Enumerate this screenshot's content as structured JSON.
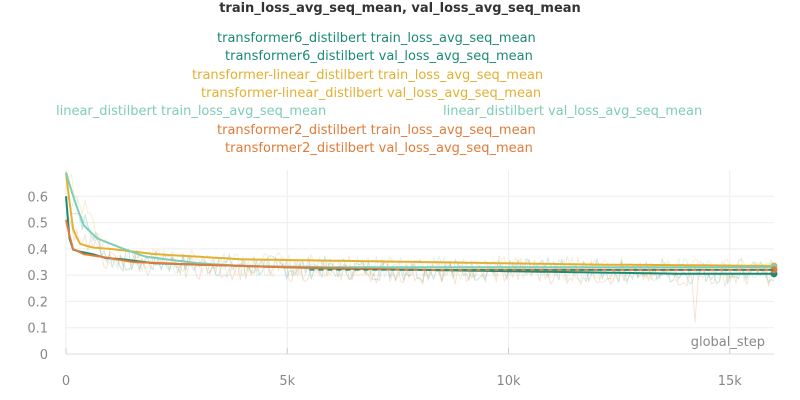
{
  "colors": {
    "teal_dark": "#1b8a74",
    "mustard": "#e3b031",
    "mint": "#7ecdb6",
    "orange": "#e07b39"
  },
  "chart_data": {
    "type": "line",
    "title": "train_loss_avg_seq_mean, val_loss_avg_seq_mean",
    "xlabel": "global_step",
    "ylabel": "",
    "xlim": [
      0,
      16000
    ],
    "ylim": [
      0,
      0.7
    ],
    "grid": true,
    "legend_position": "top",
    "x_ticks": [
      0,
      5000,
      10000,
      15000
    ],
    "x_tick_labels": [
      "0",
      "5k",
      "10k",
      "15k"
    ],
    "y_ticks": [
      0,
      0.1,
      0.2,
      0.3,
      0.4,
      0.5,
      0.6
    ],
    "y_tick_labels": [
      "0",
      "0.1",
      "0.2",
      "0.3",
      "0.4",
      "0.5",
      "0.6"
    ],
    "series": [
      {
        "name": "transformer6_distilbert train_loss_avg_seq_mean",
        "color": "#1b8a74",
        "kind": "noisy",
        "x": [
          0,
          1000,
          3000,
          5000,
          8000,
          11000,
          14000,
          16000
        ],
        "y": [
          0.6,
          0.36,
          0.34,
          0.33,
          0.32,
          0.32,
          0.31,
          0.31
        ]
      },
      {
        "name": "transformer6_distilbert val_loss_avg_seq_mean",
        "color": "#1b8a74",
        "kind": "smooth",
        "x": [
          0,
          100,
          300,
          600,
          900,
          1300,
          2000,
          3000,
          4000,
          5000,
          6000,
          8000,
          10000,
          12000,
          14000,
          16000
        ],
        "y": [
          0.6,
          0.4,
          0.39,
          0.38,
          0.365,
          0.36,
          0.345,
          0.34,
          0.335,
          0.33,
          0.325,
          0.32,
          0.315,
          0.31,
          0.305,
          0.305
        ]
      },
      {
        "name": "transformer-linear_distilbert train_loss_avg_seq_mean",
        "color": "#e3b031",
        "kind": "noisy",
        "x": [
          0,
          1000,
          3000,
          5000,
          8000,
          11000,
          14000,
          16000
        ],
        "y": [
          0.68,
          0.37,
          0.35,
          0.34,
          0.33,
          0.33,
          0.32,
          0.32
        ]
      },
      {
        "name": "transformer-linear_distilbert val_loss_avg_seq_mean",
        "color": "#e3b031",
        "kind": "smooth",
        "x": [
          0,
          150,
          300,
          600,
          1000,
          1500,
          2000,
          3000,
          4000,
          6000,
          8000,
          10000,
          12000,
          14000,
          16000
        ],
        "y": [
          0.69,
          0.48,
          0.42,
          0.405,
          0.4,
          0.39,
          0.38,
          0.37,
          0.36,
          0.355,
          0.35,
          0.345,
          0.34,
          0.338,
          0.335
        ]
      },
      {
        "name": "linear_distilbert train_loss_avg_seq_mean",
        "color": "#7ecdb6",
        "kind": "noisy",
        "x": [
          0,
          1000,
          3000,
          5000,
          8000,
          11000,
          14000,
          16000
        ],
        "y": [
          0.62,
          0.36,
          0.34,
          0.33,
          0.33,
          0.32,
          0.32,
          0.32
        ]
      },
      {
        "name": "linear_distilbert val_loss_avg_seq_mean",
        "color": "#7ecdb6",
        "kind": "smooth",
        "x": [
          0,
          200,
          400,
          700,
          1000,
          1300,
          1800,
          3000,
          4000,
          6000,
          8000,
          10000,
          12000,
          14000,
          16000
        ],
        "y": [
          0.69,
          0.58,
          0.49,
          0.44,
          0.42,
          0.4,
          0.37,
          0.345,
          0.335,
          0.33,
          0.33,
          0.33,
          0.33,
          0.33,
          0.33
        ]
      },
      {
        "name": "transformer2_distilbert train_loss_avg_seq_mean",
        "color": "#e07b39",
        "kind": "noisy",
        "x": [
          0,
          1000,
          3000,
          5000,
          8000,
          11000,
          14000,
          16000
        ],
        "y": [
          0.5,
          0.35,
          0.33,
          0.32,
          0.31,
          0.31,
          0.3,
          0.3
        ]
      },
      {
        "name": "transformer2_distilbert val_loss_avg_seq_mean",
        "color": "#e07b39",
        "kind": "smooth",
        "x": [
          0,
          150,
          400,
          800,
          1500,
          3000,
          5000,
          8000,
          11000,
          14000,
          16000
        ],
        "y": [
          0.51,
          0.4,
          0.38,
          0.37,
          0.35,
          0.34,
          0.33,
          0.32,
          0.32,
          0.32,
          0.32
        ]
      }
    ],
    "dashed_reference": {
      "color": "#1b8a74",
      "y": 0.32,
      "x": [
        5500,
        16000
      ]
    }
  }
}
